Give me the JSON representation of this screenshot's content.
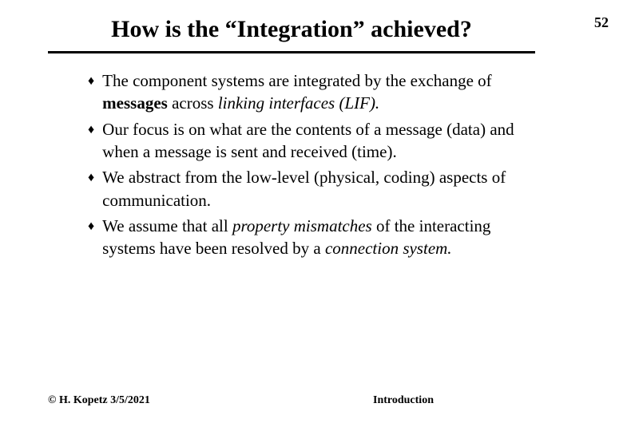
{
  "page_number": "52",
  "title": "How is the “Integration” achieved?",
  "bullets": [
    {
      "pre": "The component systems are integrated by the exchange of ",
      "bold1": "messages",
      "mid1": " across ",
      "ital1": "linking interfaces (LIF).",
      "post": ""
    },
    {
      "pre": "Our focus is on what are the contents of a message (data) and when a message is sent and received (time).",
      "bold1": "",
      "mid1": "",
      "ital1": "",
      "post": ""
    },
    {
      "pre": "We abstract from the low-level (physical, coding)  aspects of communication.",
      "bold1": "",
      "mid1": "",
      "ital1": "",
      "post": ""
    },
    {
      "pre": "We assume  that all ",
      "bold1": "",
      "mid1": "",
      "ital1": "property mismatches",
      "post_mid": " of the interacting systems have been resolved by a ",
      "ital2": "connection system.",
      "post": ""
    }
  ],
  "footer_left": "© H. Kopetz  3/5/2021",
  "footer_center": "Introduction",
  "colors": {
    "text": "#000000",
    "background": "#ffffff"
  },
  "fonts": {
    "family": "Times New Roman",
    "title_size_pt": 22,
    "body_size_pt": 16
  }
}
